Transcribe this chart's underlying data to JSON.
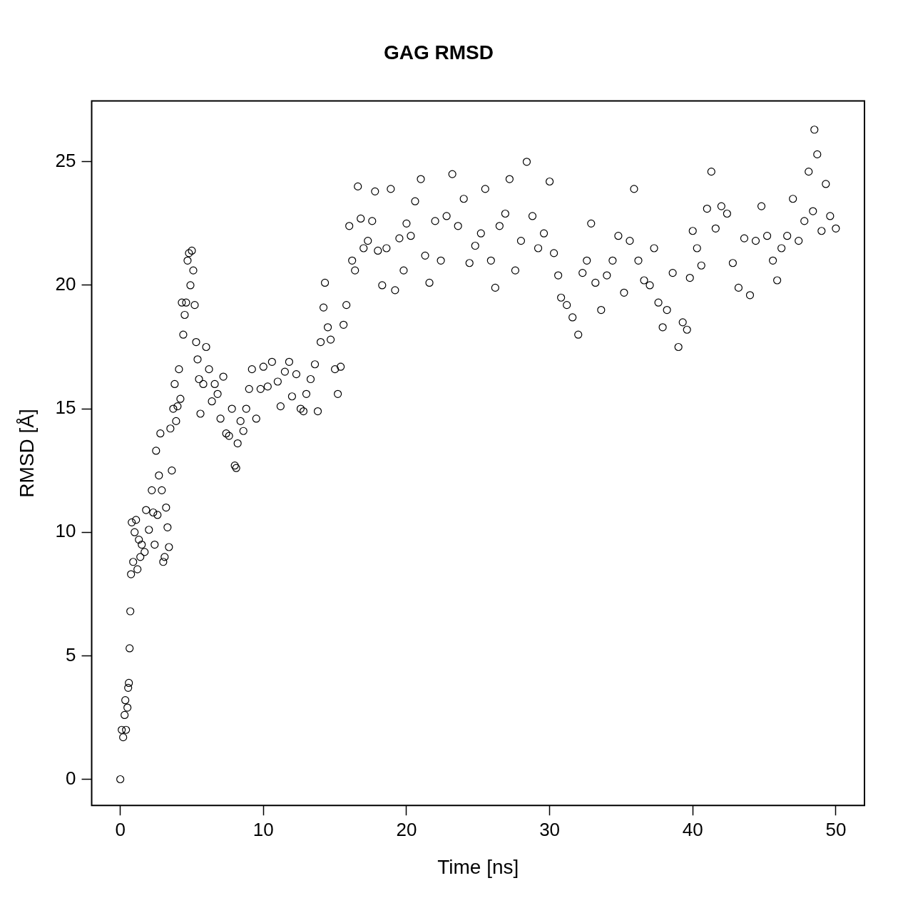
{
  "chart_data": {
    "type": "scatter",
    "title": "GAG RMSD",
    "xlabel": "Time [ns]",
    "ylabel": "RMSD [Å]",
    "marker": "circle",
    "grid": false,
    "legend": false,
    "xlim": [
      -2,
      52
    ],
    "xticks": [
      0,
      10,
      20,
      30,
      40,
      50
    ],
    "ylim": [
      -1.06,
      27.46
    ],
    "yticks": [
      0,
      5,
      10,
      15,
      20,
      25
    ],
    "series": [
      {
        "color": "#000000",
        "x": [
          0,
          0.1,
          0.2,
          0.3,
          0.35,
          0.4,
          0.5,
          0.55,
          0.6,
          0.65,
          0.7,
          0.75,
          0.8,
          0.9,
          1.0,
          1.1,
          1.2,
          1.3,
          1.4,
          1.5,
          1.7,
          1.8,
          2.0,
          2.2,
          2.3,
          2.4,
          2.5,
          2.6,
          2.7,
          2.8,
          2.9,
          3.0,
          3.1,
          3.2,
          3.3,
          3.4,
          3.5,
          3.6,
          3.7,
          3.8,
          3.9,
          4.0,
          4.1,
          4.2,
          4.3,
          4.4,
          4.5,
          4.6,
          4.7,
          4.8,
          4.9,
          5.0,
          5.1,
          5.2,
          5.3,
          5.4,
          5.5,
          5.6,
          5.8,
          6.0,
          6.2,
          6.4,
          6.6,
          6.8,
          7.0,
          7.2,
          7.4,
          7.6,
          7.8,
          8.0,
          8.1,
          8.2,
          8.4,
          8.6,
          8.8,
          9.0,
          9.2,
          9.5,
          9.8,
          10.0,
          10.3,
          10.6,
          11.0,
          11.2,
          11.5,
          11.8,
          12.0,
          12.3,
          12.6,
          12.8,
          13.0,
          13.3,
          13.6,
          13.8,
          14.0,
          14.2,
          14.3,
          14.5,
          14.7,
          15.0,
          15.2,
          15.4,
          15.6,
          15.8,
          16.0,
          16.2,
          16.4,
          16.6,
          16.8,
          17.0,
          17.3,
          17.6,
          17.8,
          18.0,
          18.3,
          18.6,
          18.9,
          19.2,
          19.5,
          19.8,
          20.0,
          20.3,
          20.6,
          21.0,
          21.3,
          21.6,
          22.0,
          22.4,
          22.8,
          23.2,
          23.6,
          24.0,
          24.4,
          24.8,
          25.2,
          25.5,
          25.9,
          26.2,
          26.5,
          26.9,
          27.2,
          27.6,
          28.0,
          28.4,
          28.8,
          29.2,
          29.6,
          30.0,
          30.3,
          30.6,
          30.8,
          31.2,
          31.6,
          32.0,
          32.3,
          32.6,
          32.9,
          33.2,
          33.6,
          34.0,
          34.4,
          34.8,
          35.2,
          35.6,
          35.9,
          36.2,
          36.6,
          37.0,
          37.3,
          37.6,
          37.9,
          38.2,
          38.6,
          39.0,
          39.3,
          39.6,
          39.8,
          40.0,
          40.3,
          40.6,
          41.0,
          41.3,
          41.6,
          42.0,
          42.4,
          42.8,
          43.2,
          43.6,
          44.0,
          44.4,
          44.8,
          45.2,
          45.6,
          45.9,
          46.2,
          46.6,
          47.0,
          47.4,
          47.8,
          48.1,
          48.4,
          48.5,
          48.7,
          49.0,
          49.3,
          49.6,
          50.0
        ],
        "values": [
          0,
          2.0,
          1.7,
          2.6,
          3.2,
          2.0,
          2.9,
          3.7,
          3.9,
          5.3,
          6.8,
          8.3,
          10.4,
          8.8,
          10.0,
          10.5,
          8.5,
          9.7,
          9.0,
          9.5,
          9.2,
          10.9,
          10.1,
          11.7,
          10.8,
          9.5,
          13.3,
          10.7,
          12.3,
          14.0,
          11.7,
          8.8,
          9.0,
          11.0,
          10.2,
          9.4,
          14.2,
          12.5,
          15.0,
          16.0,
          14.5,
          15.1,
          16.6,
          15.4,
          19.3,
          18.0,
          18.8,
          19.3,
          21.0,
          21.3,
          20.0,
          21.4,
          20.6,
          19.2,
          17.7,
          17.0,
          16.2,
          14.8,
          16.0,
          17.5,
          16.6,
          15.3,
          16.0,
          15.6,
          14.6,
          16.3,
          14.0,
          13.9,
          15.0,
          12.7,
          12.6,
          13.6,
          14.5,
          14.1,
          15.0,
          15.8,
          16.6,
          14.6,
          15.8,
          16.7,
          15.9,
          16.9,
          16.1,
          15.1,
          16.5,
          16.9,
          15.5,
          16.4,
          15.0,
          14.9,
          15.6,
          16.2,
          16.8,
          14.9,
          17.7,
          19.1,
          20.1,
          18.3,
          17.8,
          16.6,
          15.6,
          16.7,
          18.4,
          19.2,
          22.4,
          21.0,
          20.6,
          24.0,
          22.7,
          21.5,
          21.8,
          22.6,
          23.8,
          21.4,
          20.0,
          21.5,
          23.9,
          19.8,
          21.9,
          20.6,
          22.5,
          22.0,
          23.4,
          24.3,
          21.2,
          20.1,
          22.6,
          21.0,
          22.8,
          24.5,
          22.4,
          23.5,
          20.9,
          21.6,
          22.1,
          23.9,
          21.0,
          19.9,
          22.4,
          22.9,
          24.3,
          20.6,
          21.8,
          25.0,
          22.8,
          21.5,
          22.1,
          24.2,
          21.3,
          20.4,
          19.5,
          19.2,
          18.7,
          18.0,
          20.5,
          21.0,
          22.5,
          20.1,
          19.0,
          20.4,
          21.0,
          22.0,
          19.7,
          21.8,
          23.9,
          21.0,
          20.2,
          20.0,
          21.5,
          19.3,
          18.3,
          19.0,
          20.5,
          17.5,
          18.5,
          18.2,
          20.3,
          22.2,
          21.5,
          20.8,
          23.1,
          24.6,
          22.3,
          23.2,
          22.9,
          20.9,
          19.9,
          21.9,
          19.6,
          21.8,
          23.2,
          22.0,
          21.0,
          20.2,
          21.5,
          22.0,
          23.5,
          21.8,
          22.6,
          24.6,
          23.0,
          26.3,
          25.3,
          22.2,
          24.1,
          22.8,
          22.3
        ]
      }
    ]
  }
}
